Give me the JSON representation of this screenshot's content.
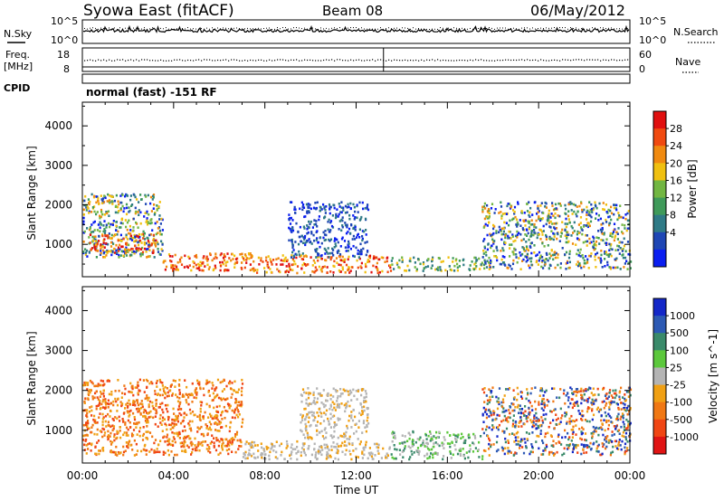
{
  "header": {
    "station": "Syowa East (fitACF)",
    "beam": "Beam 08",
    "date": "06/May/2012"
  },
  "status_panels": {
    "nsky_label": "N.Sky",
    "nsky_ticks": [
      "10^5",
      "10^0"
    ],
    "nsearch_label": "N.Search",
    "nsearch_ticks": [
      "10^5",
      "10^0"
    ],
    "freq_label_1": "Freq.",
    "freq_label_2": "[MHz]",
    "freq_ticks": [
      "18",
      "8"
    ],
    "nave_label": "Nave",
    "nave_ticks": [
      "60",
      "0"
    ],
    "cpid_label": "CPID",
    "cpid_text": "normal (fast) -151 RF"
  },
  "colors": {
    "power_scale": [
      "#0a1ef0",
      "#1e46b4",
      "#2f7a86",
      "#3f9a5a",
      "#72b642",
      "#f0c010",
      "#f08a10",
      "#f04a10",
      "#e01010"
    ],
    "velocity_scale": [
      "#1428c8",
      "#2d5ab4",
      "#3a8a6a",
      "#5cc83c",
      "#b4b4b4",
      "#f0a014",
      "#f07814",
      "#f04614",
      "#e01414"
    ]
  },
  "chart_data": [
    {
      "type": "heatmap",
      "title": "",
      "xlabel": "Time UT",
      "ylabel": "Slant Range [km]",
      "x_ticks": [
        "00:00",
        "04:00",
        "08:00",
        "12:00",
        "16:00",
        "20:00",
        "00:00"
      ],
      "xlim_hours": [
        0,
        24
      ],
      "ylim": [
        180,
        4600
      ],
      "y_ticks": [
        1000,
        2000,
        3000,
        4000
      ],
      "colorbar": {
        "label": "Power [dB]",
        "ticks": [
          "28",
          "24",
          "20",
          "16",
          "12",
          "8",
          "4"
        ],
        "range": [
          0,
          30
        ]
      },
      "echo_regions": [
        {
          "t0": 0.0,
          "t1": 3.5,
          "r0": 700,
          "r1": 2300,
          "level": "mixed"
        },
        {
          "t0": 0.3,
          "t1": 3.2,
          "r0": 800,
          "r1": 1300,
          "level": "high"
        },
        {
          "t0": 3.5,
          "t1": 7.5,
          "r0": 350,
          "r1": 800,
          "level": "high"
        },
        {
          "t0": 7.0,
          "t1": 13.5,
          "r0": 300,
          "r1": 750,
          "level": "high"
        },
        {
          "t0": 9.0,
          "t1": 12.5,
          "r0": 700,
          "r1": 2100,
          "level": "low"
        },
        {
          "t0": 13.5,
          "t1": 17.5,
          "r0": 350,
          "r1": 700,
          "level": "mid"
        },
        {
          "t0": 17.5,
          "t1": 24.0,
          "r0": 400,
          "r1": 2100,
          "level": "mixed"
        }
      ]
    },
    {
      "type": "heatmap",
      "title": "",
      "xlabel": "Time UT",
      "ylabel": "Slant Range [km]",
      "x_ticks": [
        "00:00",
        "04:00",
        "08:00",
        "12:00",
        "16:00",
        "20:00",
        "00:00"
      ],
      "xlim_hours": [
        0,
        24
      ],
      "ylim": [
        180,
        4600
      ],
      "y_ticks": [
        1000,
        2000,
        3000,
        4000
      ],
      "colorbar": {
        "label": "Velocity [m s^-1]",
        "ticks": [
          "1000",
          "500",
          "100",
          "25",
          "-25",
          "-100",
          "-500",
          "-1000"
        ],
        "range": [
          -1000,
          1000
        ]
      },
      "echo_regions": [
        {
          "t0": 0.0,
          "t1": 7.0,
          "r0": 400,
          "r1": 2300,
          "velocity": "negative"
        },
        {
          "t0": 7.0,
          "t1": 13.5,
          "r0": 300,
          "r1": 750,
          "velocity": "near-zero"
        },
        {
          "t0": 9.5,
          "t1": 12.5,
          "r0": 800,
          "r1": 2100,
          "velocity": "near-zero"
        },
        {
          "t0": 13.5,
          "t1": 17.5,
          "r0": 300,
          "r1": 1000,
          "velocity": "positive-low"
        },
        {
          "t0": 17.5,
          "t1": 24.0,
          "r0": 400,
          "r1": 2100,
          "velocity": "mixed"
        }
      ]
    }
  ]
}
